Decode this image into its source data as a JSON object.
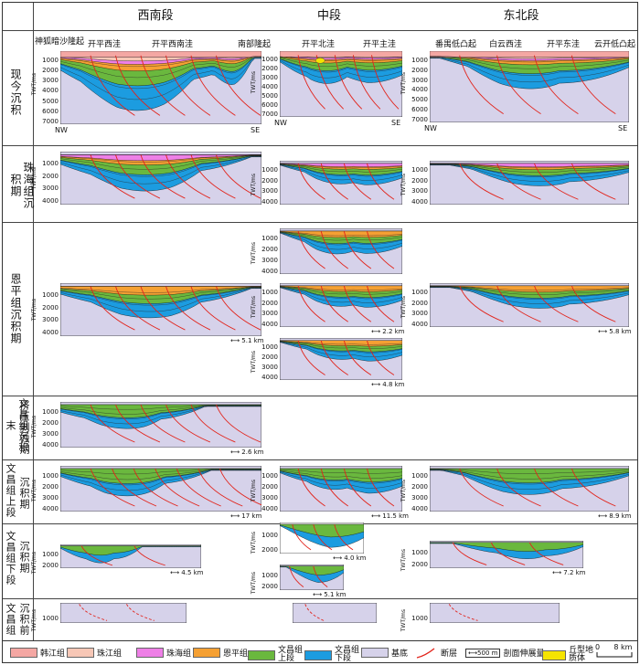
{
  "columns": {
    "sw": "西南段",
    "mid": "中段",
    "ne": "东北段"
  },
  "rows": [
    {
      "label": "现今沉积"
    },
    {
      "label": "珠海组沉积期"
    },
    {
      "label": "恩平组沉积期"
    },
    {
      "label": "文昌组沉积末",
      "sublabel": "挤压剥蚀期"
    },
    {
      "label": "文昌组上段",
      "sublabel": "沉积期"
    },
    {
      "label": "文昌组下段",
      "sublabel": "沉积期"
    },
    {
      "label": "文昌组",
      "sublabel": "沉积前"
    }
  ],
  "structures": {
    "sw": [
      "神狐暗沙隆起",
      "开平西洼",
      "开平西南洼",
      "南部隆起"
    ],
    "mid": [
      "开平北洼",
      "开平主洼"
    ],
    "ne": [
      "番禺低凸起",
      "白云西洼",
      "开平东洼",
      "云开低凸起"
    ]
  },
  "directions": {
    "nw": "NW",
    "se": "SE"
  },
  "axis": {
    "label": "TWT/ms"
  },
  "ticks_present": [
    "1000",
    "2000",
    "3000",
    "4000",
    "5000",
    "6000",
    "7000"
  ],
  "ticks_4000": [
    "1000",
    "2000",
    "3000",
    "4000"
  ],
  "ticks_2000": [
    "1000",
    "2000"
  ],
  "ticks_1000": [
    "1000"
  ],
  "scales": {
    "enping_sw": "5.1 km",
    "enping_mid2": "2.2 km",
    "enping_mid3": "4.8 km",
    "enping_ne": "5.8 km",
    "compress": "2.6 km",
    "upper_sw": "17 km",
    "upper_mid": "11.5 km",
    "upper_ne": "8.9 km",
    "lower_sw": "4.5 km",
    "lower_mid1": "4.0 km",
    "lower_mid2": "5.1 km",
    "lower_ne": "7.2 km"
  },
  "legend": [
    {
      "label": "韩江组",
      "color": "#f4a7a3"
    },
    {
      "label": "珠江组",
      "color": "#f7c7b6"
    },
    {
      "label": "珠海组",
      "color": "#ee7fe6"
    },
    {
      "label": "恩平组",
      "color": "#f5a033"
    },
    {
      "label": "文昌组上段",
      "color": "#6ab83e"
    },
    {
      "label": "文昌组下段",
      "color": "#1c9ce0"
    },
    {
      "label": "基底",
      "color": "#d6d2ea"
    },
    {
      "label": "断层"
    },
    {
      "label": "剖面伸展量",
      "bar": "500 m"
    },
    {
      "label": "丘型地质体",
      "color": "#f5e400"
    }
  ],
  "legend_scale": {
    "zero": "0",
    "value": "8 km"
  },
  "colors": {
    "basement": "#d6d2ea",
    "upper": "#6ab83e",
    "lower": "#1c9ce0",
    "enping": "#f5a033",
    "zhuhai": "#ee7fe6",
    "zhujiang": "#f7c7b6",
    "hanjiang": "#f4a7a3",
    "fault": "#e2231a",
    "hill": "#f5e400"
  }
}
